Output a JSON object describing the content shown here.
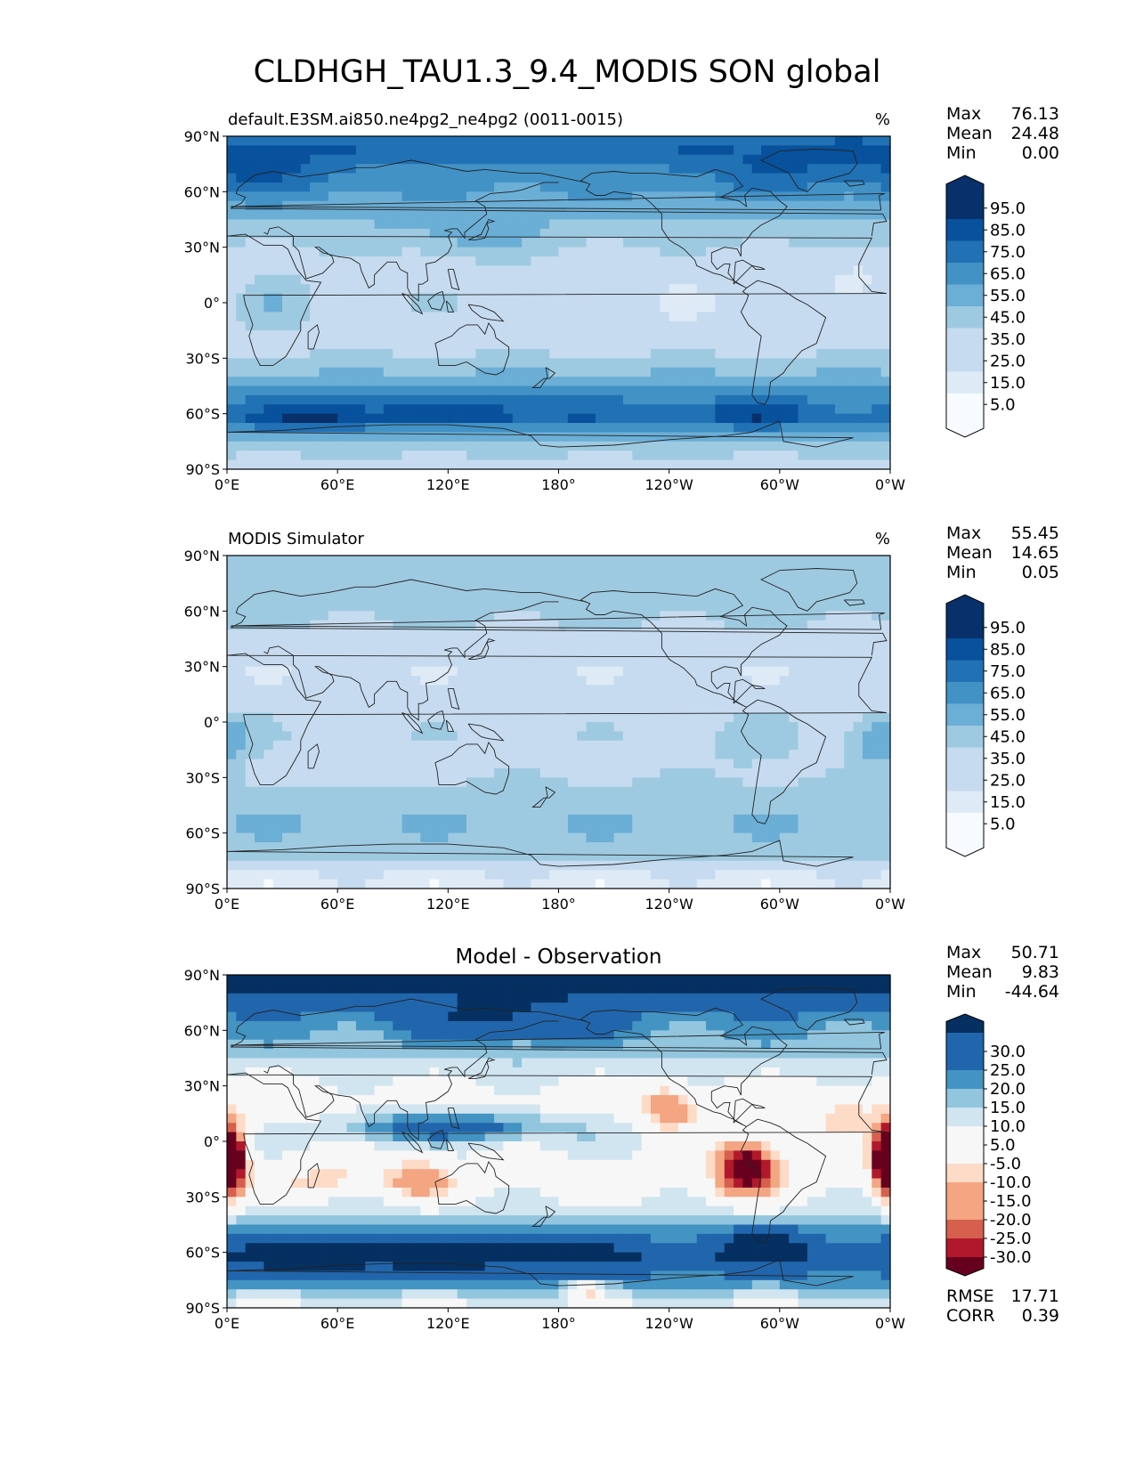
{
  "figure_title": "CLDHGH_TAU1.3_9.4_MODIS SON global",
  "axes": {
    "lat_ticks": [
      "90°N",
      "60°N",
      "30°N",
      "0°",
      "30°S",
      "60°S",
      "90°S"
    ],
    "lon_ticks": [
      "0°E",
      "60°E",
      "120°E",
      "180°",
      "120°W",
      "60°W",
      "0°W"
    ]
  },
  "stat_labels": {
    "max": "Max",
    "mean": "Mean",
    "min": "Min",
    "rmse": "RMSE",
    "corr": "CORR"
  },
  "colors": {
    "blues": [
      "#f7fbff",
      "#deebf7",
      "#c6dbef",
      "#9ecae1",
      "#6baed6",
      "#4292c6",
      "#2171b5",
      "#08519c",
      "#08306b"
    ],
    "diff": [
      "#67001f",
      "#b2182b",
      "#d6604d",
      "#f4a582",
      "#fddbc7",
      "#f7f7f7",
      "#d1e5f0",
      "#92c5de",
      "#4393c3",
      "#2166ac",
      "#053061"
    ],
    "coast": "#222222"
  },
  "panels": [
    {
      "left_title": "default.E3SM.ai850.ne4pg2_ne4pg2 (0011-0015)",
      "right_title": "%",
      "center_title": "",
      "stats": {
        "max": "76.13",
        "mean": "24.48",
        "min": "0.00"
      },
      "colorbar_labels": [
        "95.0",
        "85.0",
        "75.0",
        "65.0",
        "55.0",
        "45.0",
        "35.0",
        "25.0",
        "15.0",
        "5.0"
      ]
    },
    {
      "left_title": "MODIS Simulator",
      "right_title": "%",
      "center_title": "",
      "stats": {
        "max": "55.45",
        "mean": "14.65",
        "min": "0.05"
      },
      "colorbar_labels": [
        "95.0",
        "85.0",
        "75.0",
        "65.0",
        "55.0",
        "45.0",
        "35.0",
        "25.0",
        "15.0",
        "5.0"
      ]
    },
    {
      "left_title": "",
      "right_title": "",
      "center_title": "Model - Observation",
      "stats": {
        "max": "50.71",
        "mean": "9.83",
        "min": "-44.64"
      },
      "rmse": "17.71",
      "corr": "0.39",
      "colorbar_labels": [
        "30.0",
        "25.0",
        "20.0",
        "15.0",
        "10.0",
        "5.0",
        "-5.0",
        "-10.0",
        "-15.0",
        "-20.0",
        "-25.0",
        "-30.0"
      ]
    }
  ],
  "chart_data": [
    {
      "type": "heatmap",
      "title": "default.E3SM.ai850.ne4pg2_ne4pg2 (0011-0015)",
      "units": "%",
      "variable": "CLDHGH_TAU1.3_9.4_MODIS SON global",
      "xlim": [
        0,
        360
      ],
      "ylim": [
        -90,
        90
      ],
      "levels": [
        0,
        5,
        15,
        25,
        35,
        45,
        55,
        65,
        75,
        85,
        95
      ],
      "stats": {
        "max": 76.13,
        "mean": 24.48,
        "min": 0.0
      },
      "field": {
        "base": [
          [
            -90,
            10
          ],
          [
            -75,
            22
          ],
          [
            -62,
            50
          ],
          [
            -50,
            40
          ],
          [
            -38,
            25
          ],
          [
            -25,
            12
          ],
          [
            -10,
            12
          ],
          [
            0,
            14
          ],
          [
            10,
            12
          ],
          [
            25,
            12
          ],
          [
            40,
            22
          ],
          [
            55,
            32
          ],
          [
            70,
            42
          ],
          [
            82,
            52
          ],
          [
            90,
            50
          ]
        ],
        "blobs": [
          {
            "lon": 50,
            "lat": -62,
            "a": 18,
            "sx": 25,
            "sy": 6
          },
          {
            "lon": 140,
            "lat": -58,
            "a": 12,
            "sx": 40,
            "sy": 7
          },
          {
            "lon": 285,
            "lat": -60,
            "a": 15,
            "sx": 20,
            "sy": 6
          },
          {
            "lon": 20,
            "lat": 70,
            "a": 15,
            "sx": 25,
            "sy": 10
          },
          {
            "lon": 300,
            "lat": 70,
            "a": 12,
            "sx": 30,
            "sy": 10
          },
          {
            "lon": 25,
            "lat": 0,
            "a": 10,
            "sx": 12,
            "sy": 10
          },
          {
            "lon": 130,
            "lat": 35,
            "a": 10,
            "sx": 25,
            "sy": 8
          },
          {
            "lon": 250,
            "lat": 0,
            "a": -8,
            "sx": 30,
            "sy": 10
          },
          {
            "lon": 340,
            "lat": 15,
            "a": -8,
            "sx": 15,
            "sy": 12
          }
        ]
      }
    },
    {
      "type": "heatmap",
      "title": "MODIS Simulator",
      "units": "%",
      "xlim": [
        0,
        360
      ],
      "ylim": [
        -90,
        90
      ],
      "levels": [
        0,
        5,
        15,
        25,
        35,
        45,
        55,
        65,
        75,
        85,
        95
      ],
      "stats": {
        "max": 55.45,
        "mean": 14.65,
        "min": 0.05
      },
      "field": {
        "base": [
          [
            -90,
            2
          ],
          [
            -80,
            5
          ],
          [
            -70,
            20
          ],
          [
            -55,
            25
          ],
          [
            -40,
            20
          ],
          [
            -25,
            12
          ],
          [
            -10,
            14
          ],
          [
            0,
            12
          ],
          [
            10,
            10
          ],
          [
            25,
            6
          ],
          [
            40,
            10
          ],
          [
            55,
            16
          ],
          [
            70,
            20
          ],
          [
            90,
            22
          ]
        ],
        "blobs": [
          {
            "lon": 5,
            "lat": -10,
            "a": 15,
            "sx": 8,
            "sy": 10
          },
          {
            "lon": 350,
            "lat": -10,
            "a": 15,
            "sx": 8,
            "sy": 10
          },
          {
            "lon": 285,
            "lat": -10,
            "a": 10,
            "sx": 12,
            "sy": 10
          },
          {
            "lon": 60,
            "lat": -28,
            "a": -8,
            "sx": 20,
            "sy": 8
          }
        ]
      }
    },
    {
      "type": "heatmap",
      "title": "Model - Observation",
      "xlim": [
        0,
        360
      ],
      "ylim": [
        -90,
        90
      ],
      "levels": [
        -35,
        -30,
        -25,
        -20,
        -15,
        -10,
        -5,
        5,
        10,
        15,
        20,
        25,
        30,
        35
      ],
      "stats": {
        "max": 50.71,
        "mean": 9.83,
        "min": -44.64
      },
      "rmse": 17.71,
      "corr": 0.39,
      "field": {
        "base": [
          [
            -90,
            4
          ],
          [
            -75,
            18
          ],
          [
            -62,
            28
          ],
          [
            -50,
            18
          ],
          [
            -38,
            8
          ],
          [
            -25,
            2
          ],
          [
            -10,
            4
          ],
          [
            0,
            6
          ],
          [
            10,
            4
          ],
          [
            25,
            2
          ],
          [
            40,
            8
          ],
          [
            55,
            14
          ],
          [
            70,
            20
          ],
          [
            82,
            32
          ],
          [
            90,
            34
          ]
        ],
        "blobs": [
          {
            "lon": 0,
            "lat": -10,
            "a": -42,
            "sx": 6,
            "sy": 12
          },
          {
            "lon": 360,
            "lat": -10,
            "a": -42,
            "sx": 6,
            "sy": 12
          },
          {
            "lon": 282,
            "lat": -14,
            "a": -45,
            "sx": 12,
            "sy": 10
          },
          {
            "lon": 240,
            "lat": 18,
            "a": -22,
            "sx": 10,
            "sy": 8
          },
          {
            "lon": 105,
            "lat": -20,
            "a": -20,
            "sx": 12,
            "sy": 7
          },
          {
            "lon": 55,
            "lat": -20,
            "a": -10,
            "sx": 20,
            "sy": 7
          },
          {
            "lon": 335,
            "lat": 12,
            "a": -10,
            "sx": 15,
            "sy": 10
          },
          {
            "lon": 120,
            "lat": 8,
            "a": 22,
            "sx": 40,
            "sy": 5
          },
          {
            "lon": 50,
            "lat": -62,
            "a": 14,
            "sx": 25,
            "sy": 6
          },
          {
            "lon": 140,
            "lat": -60,
            "a": 12,
            "sx": 45,
            "sy": 7
          },
          {
            "lon": 150,
            "lat": 65,
            "a": 14,
            "sx": 35,
            "sy": 8
          },
          {
            "lon": 290,
            "lat": -55,
            "a": 14,
            "sx": 18,
            "sy": 6
          },
          {
            "lon": 195,
            "lat": -80,
            "a": -22,
            "sx": 6,
            "sy": 3
          },
          {
            "lon": 20,
            "lat": 20,
            "a": -4,
            "sx": 25,
            "sy": 10
          }
        ]
      }
    }
  ]
}
